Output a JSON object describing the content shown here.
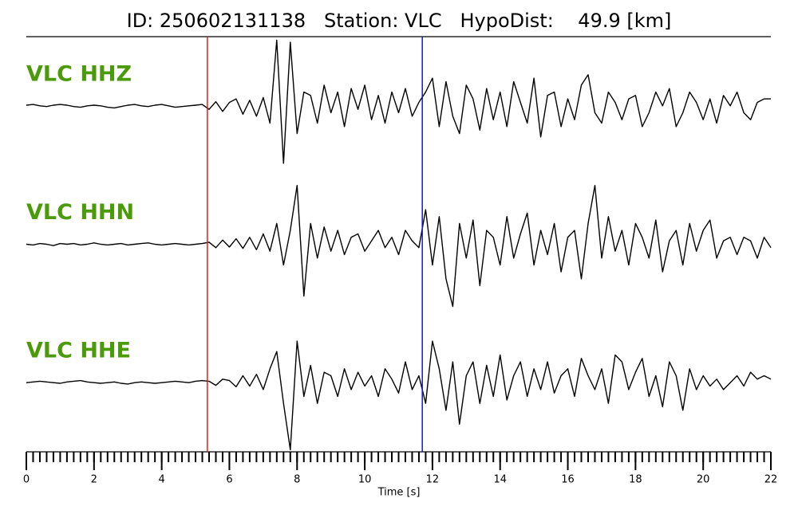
{
  "chart_data": {
    "type": "line",
    "title": "ID: 250602131138   Station: VLC   HypoDist:    49.9 [km]",
    "x_label": "Time [s]",
    "xlim": [
      0,
      22
    ],
    "xticks": [
      0,
      2,
      4,
      6,
      8,
      10,
      12,
      14,
      16,
      18,
      20,
      22
    ],
    "xminor_step": 0.2,
    "ylim": [
      -1,
      1
    ],
    "label_color": "#4a9a0a",
    "markers": [
      {
        "x": 5.35,
        "color": "#e0201a"
      },
      {
        "x": 11.7,
        "color": "#1a1ac0"
      }
    ],
    "x": [
      0,
      0.2,
      0.4,
      0.6,
      0.8,
      1,
      1.2,
      1.4,
      1.6,
      1.8,
      2,
      2.2,
      2.4,
      2.6,
      2.8,
      3,
      3.2,
      3.4,
      3.6,
      3.8,
      4,
      4.2,
      4.4,
      4.6,
      4.8,
      5,
      5.2,
      5.4,
      5.6,
      5.8,
      6,
      6.2,
      6.4,
      6.6,
      6.8,
      7,
      7.2,
      7.4,
      7.6,
      7.8,
      8,
      8.2,
      8.4,
      8.6,
      8.8,
      9,
      9.2,
      9.4,
      9.6,
      9.8,
      10,
      10.2,
      10.4,
      10.6,
      10.8,
      11,
      11.2,
      11.4,
      11.6,
      11.8,
      12,
      12.2,
      12.4,
      12.6,
      12.8,
      13,
      13.2,
      13.4,
      13.6,
      13.8,
      14,
      14.2,
      14.4,
      14.6,
      14.8,
      15,
      15.2,
      15.4,
      15.6,
      15.8,
      16,
      16.2,
      16.4,
      16.6,
      16.8,
      17,
      17.2,
      17.4,
      17.6,
      17.8,
      18,
      18.2,
      18.4,
      18.6,
      18.8,
      19,
      19.2,
      19.4,
      19.6,
      19.8,
      20,
      20.2,
      20.4,
      20.6,
      20.8,
      21,
      21.2,
      21.4,
      21.6,
      21.8,
      22
    ],
    "series": [
      {
        "name": "VLC HHZ",
        "color": "#000000",
        "values": [
          0.01,
          0.02,
          0.0,
          -0.01,
          0.01,
          0.02,
          0.01,
          -0.01,
          -0.02,
          0.0,
          0.01,
          0.0,
          -0.02,
          -0.03,
          -0.01,
          0.01,
          0.02,
          0.0,
          -0.01,
          0.01,
          0.02,
          0.0,
          -0.02,
          -0.01,
          0.0,
          0.01,
          0.02,
          -0.05,
          0.06,
          -0.08,
          0.05,
          0.1,
          -0.12,
          0.08,
          -0.15,
          0.12,
          -0.25,
          0.95,
          -0.83,
          0.92,
          -0.4,
          0.2,
          0.15,
          -0.25,
          0.3,
          -0.1,
          0.2,
          -0.3,
          0.25,
          -0.05,
          0.3,
          -0.2,
          0.15,
          -0.25,
          0.2,
          -0.1,
          0.25,
          -0.15,
          0.05,
          0.2,
          0.4,
          -0.3,
          0.35,
          -0.15,
          -0.4,
          0.3,
          0.1,
          -0.35,
          0.25,
          -0.2,
          0.2,
          -0.3,
          0.35,
          0.05,
          -0.25,
          0.4,
          -0.45,
          0.15,
          0.2,
          -0.3,
          0.1,
          -0.2,
          0.3,
          0.45,
          -0.1,
          -0.25,
          0.2,
          0.05,
          -0.2,
          0.1,
          0.15,
          -0.3,
          -0.1,
          0.2,
          0.0,
          0.25,
          -0.3,
          -0.1,
          0.2,
          0.05,
          -0.2,
          0.1,
          -0.25,
          0.15,
          0.0,
          0.2,
          -0.1,
          -0.2,
          0.05,
          0.1,
          0.1
        ]
      },
      {
        "name": "VLC HHN",
        "color": "#000000",
        "values": [
          0.0,
          -0.01,
          0.01,
          0.0,
          -0.02,
          0.01,
          0.0,
          0.01,
          -0.01,
          0.0,
          0.02,
          0.0,
          -0.01,
          0.0,
          0.01,
          -0.01,
          0.0,
          0.01,
          0.02,
          0.0,
          -0.01,
          0.0,
          0.01,
          0.0,
          -0.01,
          0.0,
          0.01,
          0.03,
          -0.05,
          0.06,
          -0.04,
          0.08,
          -0.06,
          0.1,
          -0.08,
          0.15,
          -0.1,
          0.3,
          -0.3,
          0.2,
          0.85,
          -0.75,
          0.3,
          -0.2,
          0.25,
          -0.1,
          0.2,
          -0.15,
          0.1,
          0.15,
          -0.1,
          0.05,
          0.2,
          -0.05,
          0.1,
          -0.15,
          0.2,
          0.05,
          -0.05,
          0.5,
          -0.3,
          0.4,
          -0.5,
          -0.9,
          0.3,
          -0.2,
          0.35,
          -0.6,
          0.2,
          0.1,
          -0.3,
          0.4,
          -0.2,
          0.15,
          0.45,
          -0.3,
          0.2,
          -0.15,
          0.3,
          -0.4,
          0.1,
          0.2,
          -0.5,
          0.3,
          0.85,
          -0.2,
          0.4,
          -0.1,
          0.2,
          -0.3,
          0.3,
          0.1,
          -0.2,
          0.35,
          -0.4,
          0.05,
          0.2,
          -0.3,
          0.3,
          -0.1,
          0.2,
          0.35,
          -0.2,
          0.05,
          0.1,
          -0.15,
          0.1,
          0.05,
          -0.2,
          0.1,
          -0.05
        ]
      },
      {
        "name": "VLC HHE",
        "color": "#000000",
        "values": [
          0.0,
          0.01,
          0.02,
          0.01,
          0.0,
          -0.01,
          0.01,
          0.02,
          0.03,
          0.01,
          0.0,
          -0.01,
          0.0,
          0.01,
          -0.01,
          -0.02,
          0.0,
          0.01,
          0.0,
          -0.01,
          0.0,
          0.01,
          0.02,
          0.01,
          0.0,
          0.02,
          0.03,
          0.02,
          -0.04,
          0.05,
          0.03,
          -0.06,
          0.1,
          -0.05,
          0.12,
          -0.1,
          0.2,
          0.45,
          -0.3,
          -0.97,
          0.6,
          -0.2,
          0.25,
          -0.3,
          0.15,
          0.1,
          -0.2,
          0.2,
          -0.1,
          0.15,
          -0.05,
          0.1,
          -0.2,
          0.2,
          0.05,
          -0.15,
          0.3,
          -0.1,
          0.1,
          -0.3,
          0.6,
          0.2,
          -0.4,
          0.3,
          -0.6,
          0.1,
          0.3,
          -0.3,
          0.25,
          -0.2,
          0.4,
          -0.25,
          0.1,
          0.3,
          -0.2,
          0.2,
          -0.1,
          0.3,
          -0.15,
          0.1,
          0.2,
          -0.2,
          0.35,
          0.1,
          -0.1,
          0.2,
          -0.3,
          0.4,
          0.3,
          -0.1,
          0.15,
          0.35,
          -0.2,
          0.1,
          -0.35,
          0.3,
          0.1,
          -0.4,
          0.2,
          -0.1,
          0.1,
          -0.05,
          0.05,
          -0.1,
          0.0,
          0.1,
          -0.05,
          0.15,
          0.05,
          0.1,
          0.05
        ]
      }
    ]
  }
}
